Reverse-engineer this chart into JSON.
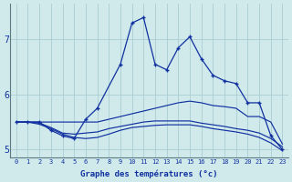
{
  "xlabel": "Graphe des températures (°c)",
  "bg_color": "#d0eaec",
  "grid_color": "#aacdd2",
  "line_color": "#1030a0",
  "xlim": [
    -0.5,
    23.5
  ],
  "ylim": [
    4.85,
    7.65
  ],
  "xticks": [
    0,
    1,
    2,
    3,
    4,
    5,
    6,
    7,
    8,
    9,
    10,
    11,
    12,
    13,
    14,
    15,
    16,
    17,
    18,
    19,
    20,
    21,
    22,
    23
  ],
  "yticks": [
    5,
    6,
    7
  ],
  "line_main_x": [
    0,
    1,
    2,
    3,
    4,
    5,
    6,
    7,
    9,
    10,
    11,
    12,
    13,
    14,
    15,
    16,
    17,
    18,
    19,
    20,
    21,
    22,
    23
  ],
  "line_main_y": [
    5.5,
    5.5,
    5.5,
    5.35,
    5.25,
    5.2,
    5.55,
    5.75,
    6.55,
    7.3,
    7.4,
    6.55,
    6.45,
    6.85,
    7.05,
    6.65,
    6.35,
    6.25,
    6.2,
    5.85,
    5.85,
    5.25,
    5.0
  ],
  "line_upper_x": [
    0,
    1,
    2,
    3,
    4,
    5,
    6,
    7,
    8,
    9,
    10,
    11,
    12,
    13,
    14,
    15,
    16,
    17,
    18,
    19,
    20,
    21,
    22,
    23
  ],
  "line_upper_y": [
    5.5,
    5.5,
    5.5,
    5.5,
    5.5,
    5.5,
    5.5,
    5.5,
    5.55,
    5.6,
    5.65,
    5.7,
    5.75,
    5.8,
    5.85,
    5.88,
    5.85,
    5.8,
    5.78,
    5.75,
    5.6,
    5.6,
    5.5,
    5.1
  ],
  "line_mid_x": [
    0,
    1,
    2,
    3,
    4,
    5,
    6,
    7,
    8,
    9,
    10,
    11,
    12,
    13,
    14,
    15,
    16,
    17,
    18,
    19,
    20,
    21,
    22,
    23
  ],
  "line_mid_y": [
    5.5,
    5.5,
    5.48,
    5.4,
    5.3,
    5.28,
    5.3,
    5.32,
    5.38,
    5.42,
    5.46,
    5.5,
    5.52,
    5.52,
    5.52,
    5.52,
    5.48,
    5.45,
    5.42,
    5.38,
    5.35,
    5.3,
    5.2,
    5.05
  ],
  "line_low_x": [
    0,
    1,
    2,
    3,
    4,
    5,
    6,
    7,
    8,
    9,
    10,
    11,
    12,
    13,
    14,
    15,
    16,
    17,
    18,
    19,
    20,
    21,
    22,
    23
  ],
  "line_low_y": [
    5.5,
    5.5,
    5.46,
    5.38,
    5.28,
    5.22,
    5.2,
    5.22,
    5.28,
    5.35,
    5.4,
    5.42,
    5.44,
    5.45,
    5.45,
    5.45,
    5.42,
    5.38,
    5.35,
    5.32,
    5.28,
    5.22,
    5.12,
    4.98
  ]
}
